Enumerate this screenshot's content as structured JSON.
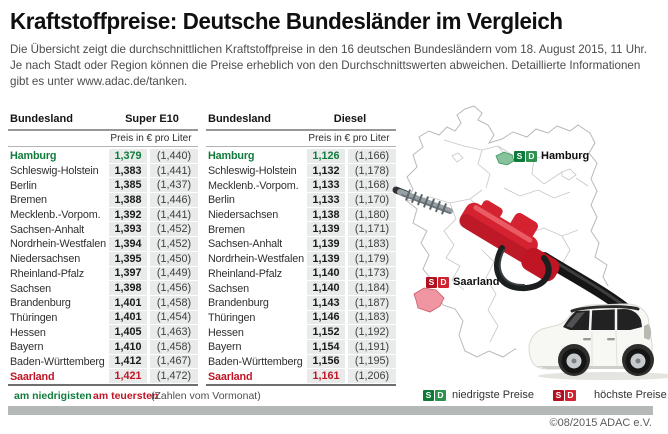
{
  "title": "Kraftstoffpreise: Deutsche Bundesländer im Vergleich",
  "intro": "Die Übersicht zeigt die durchschnittlichen Kraftstoffpreise in den 16 deutschen Bundesländern vom 18. August 2015, 11 Uhr. Je nach Stadt oder Region können die Preise erheblich von den Durchschnittswerten abweichen. Detaillierte Informationen gibt es unter www.adac.de/tanken.",
  "badge": {
    "s": "S",
    "d": "D"
  },
  "tables": [
    {
      "state_header": "Bundesland",
      "fuel_label": "Super E10",
      "price_header": "Preis in € pro Liter",
      "rows": [
        {
          "state": "Hamburg",
          "price": "1,379",
          "prev": "(1,440)",
          "highlight": "lowest"
        },
        {
          "state": "Schleswig-Holstein",
          "price": "1,383",
          "prev": "(1,441)"
        },
        {
          "state": "Berlin",
          "price": "1,385",
          "prev": "(1,437)"
        },
        {
          "state": "Bremen",
          "price": "1,388",
          "prev": "(1,446)"
        },
        {
          "state": "Mecklenb.-Vorpom.",
          "price": "1,392",
          "prev": "(1,441)"
        },
        {
          "state": "Sachsen-Anhalt",
          "price": "1,393",
          "prev": "(1,452)"
        },
        {
          "state": "Nordrhein-Westfalen",
          "price": "1,394",
          "prev": "(1,452)"
        },
        {
          "state": "Niedersachsen",
          "price": "1,395",
          "prev": "(1,450)"
        },
        {
          "state": "Rheinland-Pfalz",
          "price": "1,397",
          "prev": "(1,449)"
        },
        {
          "state": "Sachsen",
          "price": "1,398",
          "prev": "(1,456)"
        },
        {
          "state": "Brandenburg",
          "price": "1,401",
          "prev": "(1,458)"
        },
        {
          "state": "Thüringen",
          "price": "1,401",
          "prev": "(1,454)"
        },
        {
          "state": "Hessen",
          "price": "1,405",
          "prev": "(1,463)"
        },
        {
          "state": "Bayern",
          "price": "1,410",
          "prev": "(1,458)"
        },
        {
          "state": "Baden-Württemberg",
          "price": "1,412",
          "prev": "(1,467)"
        },
        {
          "state": "Saarland",
          "price": "1,421",
          "prev": "(1,472)",
          "highlight": "highest"
        }
      ]
    },
    {
      "state_header": "Bundesland",
      "fuel_label": "Diesel",
      "price_header": "Preis in € pro Liter",
      "rows": [
        {
          "state": "Hamburg",
          "price": "1,126",
          "prev": "(1,166)",
          "highlight": "lowest"
        },
        {
          "state": "Schleswig-Holstein",
          "price": "1,132",
          "prev": "(1,178)"
        },
        {
          "state": "Mecklenb.-Vorpom.",
          "price": "1,133",
          "prev": "(1,168)"
        },
        {
          "state": "Berlin",
          "price": "1,133",
          "prev": "(1,170)"
        },
        {
          "state": "Niedersachsen",
          "price": "1,138",
          "prev": "(1,180)"
        },
        {
          "state": "Bremen",
          "price": "1,139",
          "prev": "(1,171)"
        },
        {
          "state": "Sachsen-Anhalt",
          "price": "1,139",
          "prev": "(1,183)"
        },
        {
          "state": "Nordrhein-Westfalen",
          "price": "1,139",
          "prev": "(1,179)"
        },
        {
          "state": "Rheinland-Pfalz",
          "price": "1,140",
          "prev": "(1,173)"
        },
        {
          "state": "Sachsen",
          "price": "1,140",
          "prev": "(1,184)"
        },
        {
          "state": "Brandenburg",
          "price": "1,143",
          "prev": "(1,187)"
        },
        {
          "state": "Thüringen",
          "price": "1,146",
          "prev": "(1,183)"
        },
        {
          "state": "Hessen",
          "price": "1,152",
          "prev": "(1,192)"
        },
        {
          "state": "Bayern",
          "price": "1,154",
          "prev": "(1,191)"
        },
        {
          "state": "Baden-Württemberg",
          "price": "1,156",
          "prev": "(1,195)"
        },
        {
          "state": "Saarland",
          "price": "1,161",
          "prev": "(1,206)",
          "highlight": "highest"
        }
      ]
    }
  ],
  "table_legend": {
    "lowest": "am niedrigisten",
    "highest": "am teuersten",
    "note": "(Zahlen vom Vormonat)"
  },
  "map": {
    "markers": [
      {
        "label": "Hamburg",
        "type": "lowest"
      },
      {
        "label": "Saarland",
        "type": "highest"
      }
    ],
    "legend": [
      {
        "label": "niedrigste Preise",
        "type": "lowest"
      },
      {
        "label": "höchste Preise",
        "type": "highest"
      }
    ]
  },
  "footer": {
    "copyright": "©08/2015 ADAC e.V."
  },
  "colors": {
    "green": "#107c3c",
    "red": "#c11426",
    "cell_bg": "#e9ebea",
    "bar_gray": "#b4b8b7",
    "map_outline": "#b9b9b9",
    "hamburg_fill": "#86c29b",
    "saarland_fill": "#ef96a2",
    "nozzle_red": "#d42230"
  },
  "chart_data": [
    {
      "type": "table",
      "title": "Super E10 — Preis in € pro Liter (18. August 2015, 11 Uhr)",
      "columns": [
        "Bundesland",
        "Preis",
        "Vormonat"
      ],
      "rows": [
        [
          "Hamburg",
          1.379,
          1.44
        ],
        [
          "Schleswig-Holstein",
          1.383,
          1.441
        ],
        [
          "Berlin",
          1.385,
          1.437
        ],
        [
          "Bremen",
          1.388,
          1.446
        ],
        [
          "Mecklenb.-Vorpom.",
          1.392,
          1.441
        ],
        [
          "Sachsen-Anhalt",
          1.393,
          1.452
        ],
        [
          "Nordrhein-Westfalen",
          1.394,
          1.452
        ],
        [
          "Niedersachsen",
          1.395,
          1.45
        ],
        [
          "Rheinland-Pfalz",
          1.397,
          1.449
        ],
        [
          "Sachsen",
          1.398,
          1.456
        ],
        [
          "Brandenburg",
          1.401,
          1.458
        ],
        [
          "Thüringen",
          1.401,
          1.454
        ],
        [
          "Hessen",
          1.405,
          1.463
        ],
        [
          "Bayern",
          1.41,
          1.458
        ],
        [
          "Baden-Württemberg",
          1.412,
          1.467
        ],
        [
          "Saarland",
          1.421,
          1.472
        ]
      ],
      "notes": "lowest: Hamburg (green), highest: Saarland (red)"
    },
    {
      "type": "table",
      "title": "Diesel — Preis in € pro Liter (18. August 2015, 11 Uhr)",
      "columns": [
        "Bundesland",
        "Preis",
        "Vormonat"
      ],
      "rows": [
        [
          "Hamburg",
          1.126,
          1.166
        ],
        [
          "Schleswig-Holstein",
          1.132,
          1.178
        ],
        [
          "Mecklenb.-Vorpom.",
          1.133,
          1.168
        ],
        [
          "Berlin",
          1.133,
          1.17
        ],
        [
          "Niedersachsen",
          1.138,
          1.18
        ],
        [
          "Bremen",
          1.139,
          1.171
        ],
        [
          "Sachsen-Anhalt",
          1.139,
          1.183
        ],
        [
          "Nordrhein-Westfalen",
          1.139,
          1.179
        ],
        [
          "Rheinland-Pfalz",
          1.14,
          1.173
        ],
        [
          "Sachsen",
          1.14,
          1.184
        ],
        [
          "Brandenburg",
          1.143,
          1.187
        ],
        [
          "Thüringen",
          1.146,
          1.183
        ],
        [
          "Hessen",
          1.152,
          1.192
        ],
        [
          "Bayern",
          1.154,
          1.191
        ],
        [
          "Baden-Württemberg",
          1.156,
          1.195
        ],
        [
          "Saarland",
          1.161,
          1.206
        ]
      ],
      "notes": "lowest: Hamburg (green), highest: Saarland (red)"
    }
  ]
}
